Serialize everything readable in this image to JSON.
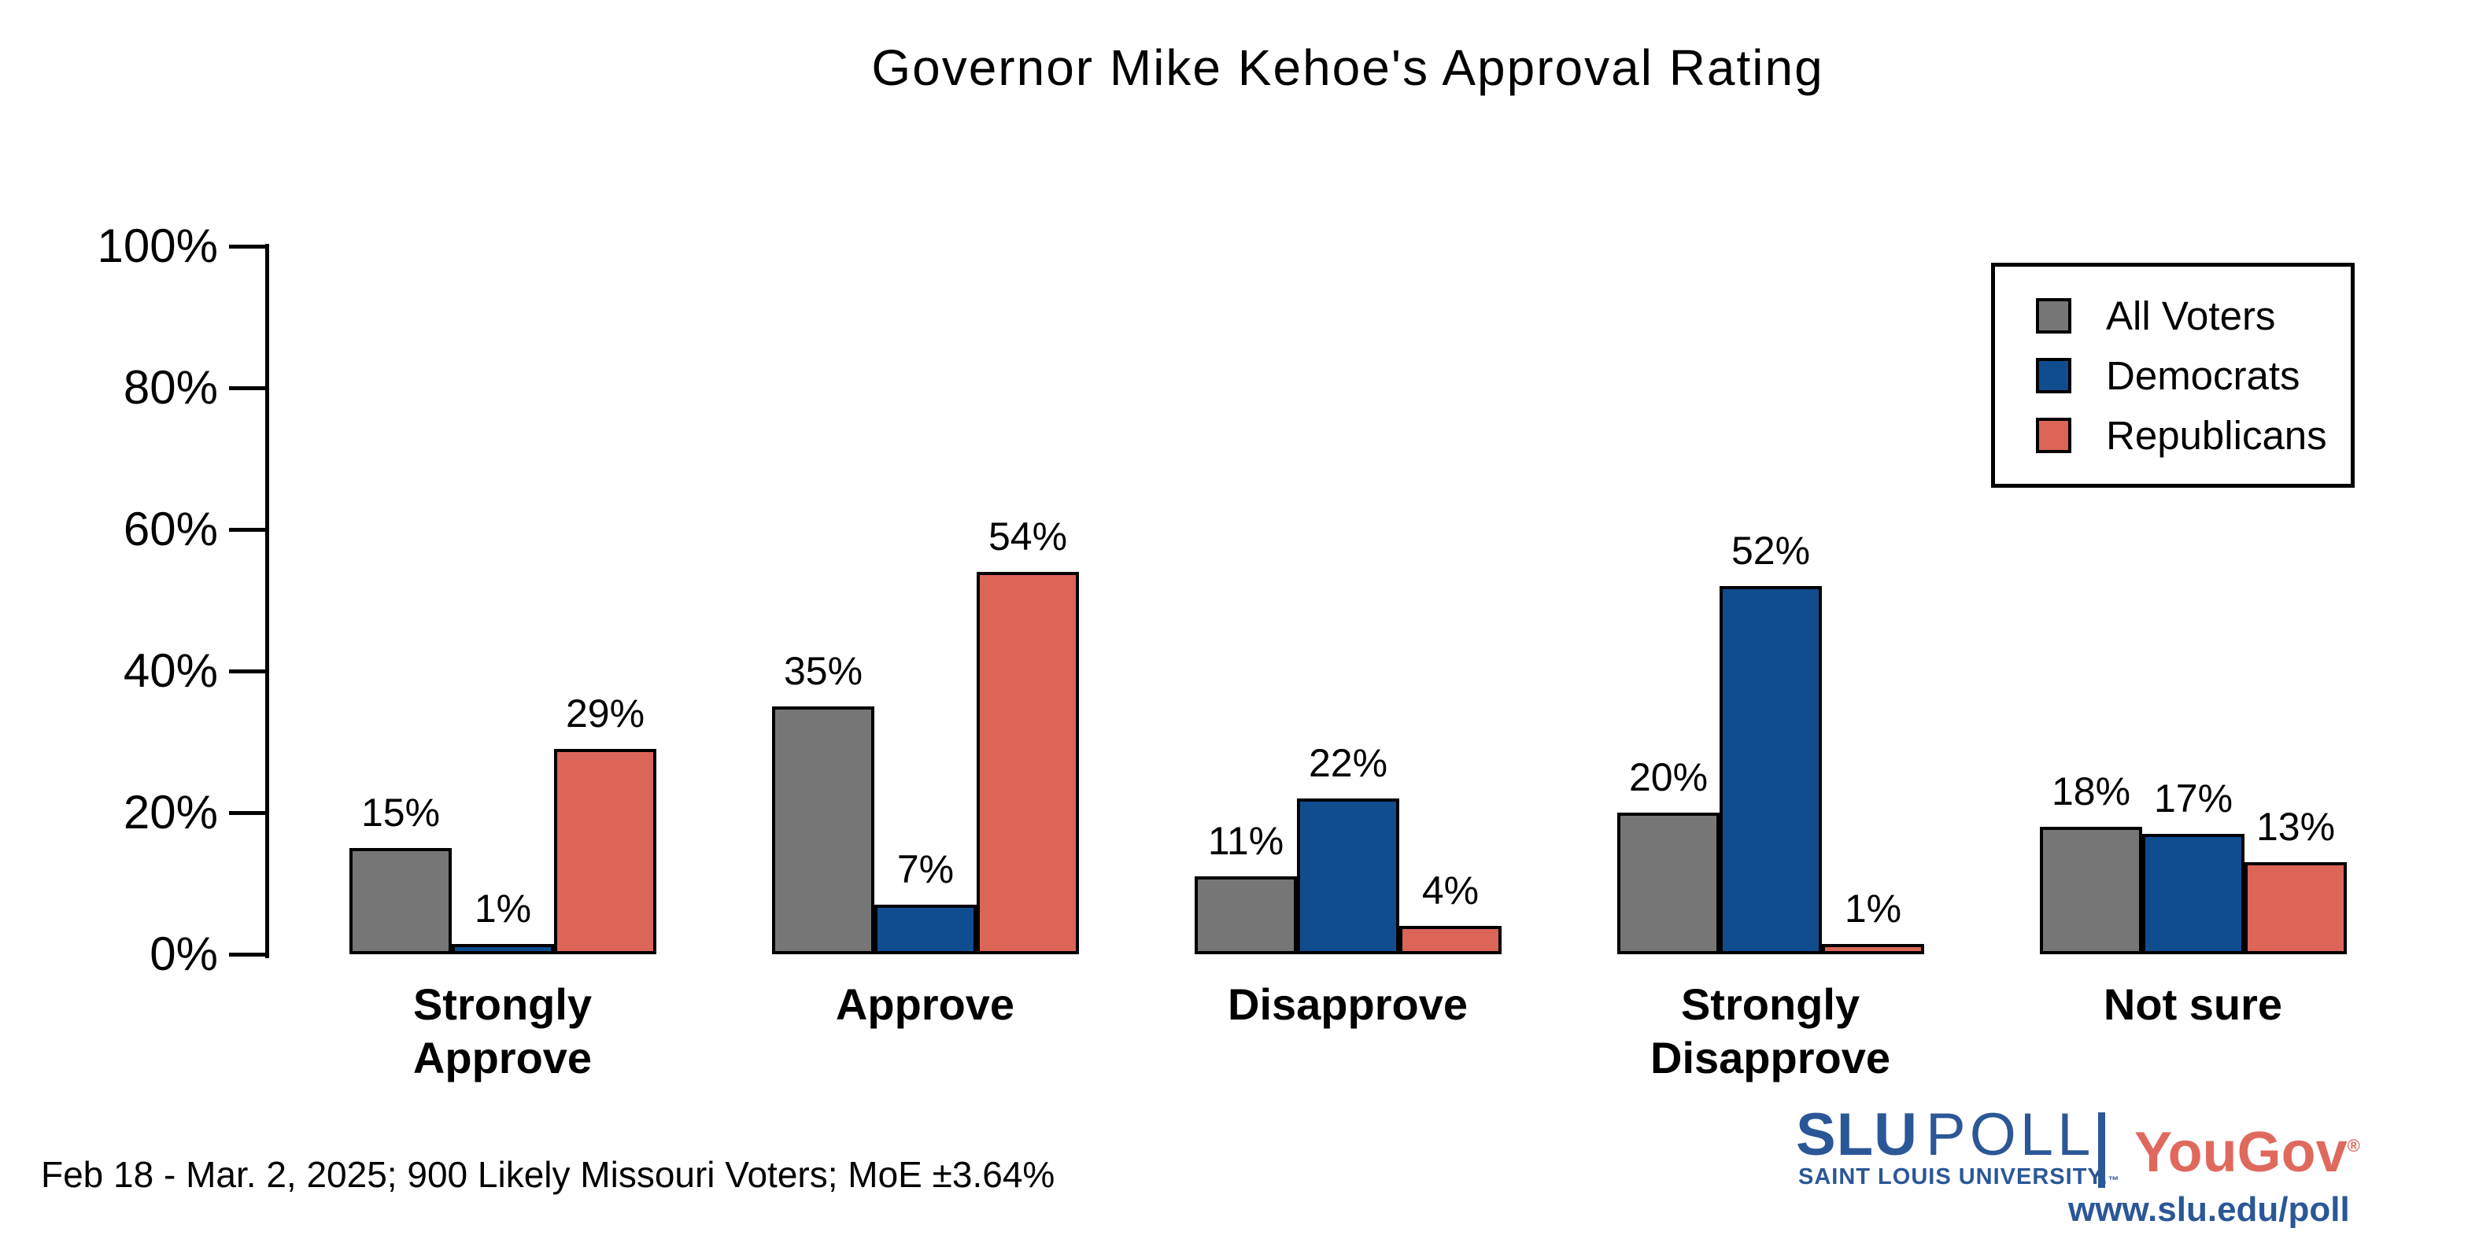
{
  "chart_data": {
    "type": "bar",
    "title": "Governor Mike Kehoe's Approval Rating",
    "categories": [
      "Strongly Approve",
      "Approve",
      "Disapprove",
      "Strongly Disapprove",
      "Not sure"
    ],
    "series": [
      {
        "name": "All Voters",
        "color": "#767676",
        "values": [
          15,
          35,
          11,
          20,
          18
        ]
      },
      {
        "name": "Democrats",
        "color": "#0f4d8f",
        "values": [
          1,
          7,
          22,
          52,
          17
        ]
      },
      {
        "name": "Republicans",
        "color": "#db6557",
        "values": [
          29,
          54,
          4,
          1,
          13
        ]
      }
    ],
    "value_suffix": "%",
    "xlabel": "",
    "ylabel": "",
    "ylim": [
      0,
      100
    ],
    "yticks": [
      0,
      20,
      40,
      60,
      80,
      100
    ],
    "ytick_suffix": "%",
    "grid": false,
    "legend_position": "top-right",
    "bar_outline_color": "#000000",
    "axis_color": "#000000",
    "background": "#ffffff"
  },
  "footer": {
    "note": "Feb 18 - Mar. 2, 2025; 900 Likely Missouri Voters; MoE ±3.64%"
  },
  "branding": {
    "slu": "SLU",
    "poll": "POLL",
    "university": "SAINT LOUIS UNIVERSITY.",
    "trademark": "™",
    "yougov": "YouGov",
    "registered": "®",
    "url": "www.slu.edu/poll",
    "slu_blue": "#2b5797",
    "yougov_red": "#e0695e"
  }
}
